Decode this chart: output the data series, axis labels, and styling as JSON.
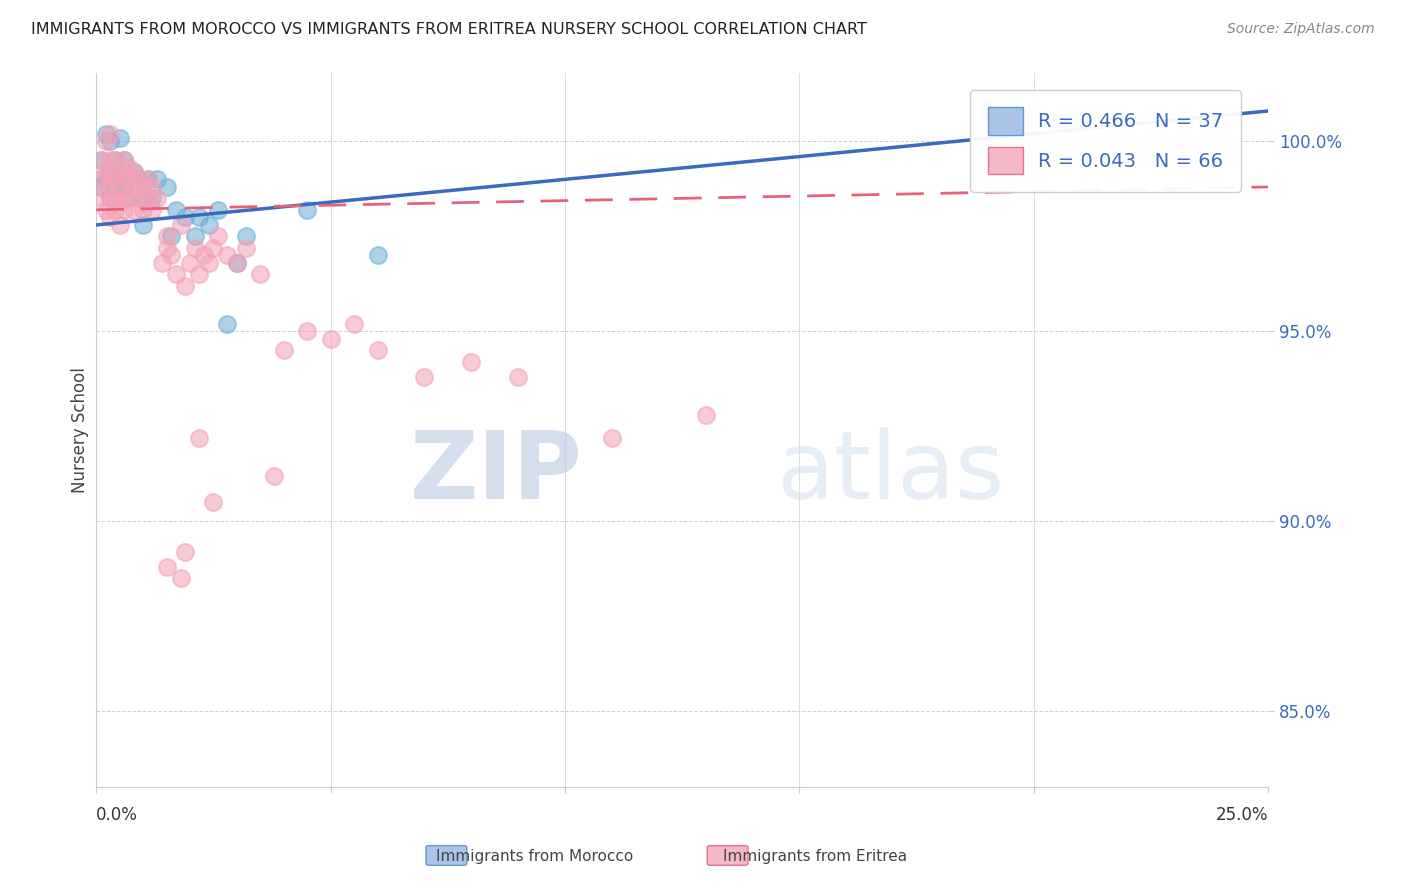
{
  "title": "IMMIGRANTS FROM MOROCCO VS IMMIGRANTS FROM ERITREA NURSERY SCHOOL CORRELATION CHART",
  "source": "Source: ZipAtlas.com",
  "ylabel": "Nursery School",
  "xmin": 0.0,
  "xmax": 0.25,
  "ymin": 83.0,
  "ymax": 101.8,
  "morocco_R": 0.466,
  "morocco_N": 37,
  "eritrea_R": 0.043,
  "eritrea_N": 66,
  "morocco_color": "#6baed6",
  "eritrea_color": "#f4a0b5",
  "morocco_label": "Immigrants from Morocco",
  "eritrea_label": "Immigrants from Eritrea",
  "watermark_zip": "ZIP",
  "watermark_atlas": "atlas",
  "background_color": "#ffffff",
  "grid_color": "#d0d0d0",
  "morocco_x": [
    0.001,
    0.001,
    0.002,
    0.002,
    0.003,
    0.003,
    0.003,
    0.004,
    0.004,
    0.005,
    0.005,
    0.006,
    0.006,
    0.007,
    0.007,
    0.008,
    0.009,
    0.01,
    0.01,
    0.011,
    0.012,
    0.013,
    0.015,
    0.016,
    0.017,
    0.019,
    0.021,
    0.022,
    0.024,
    0.026,
    0.028,
    0.03,
    0.032,
    0.045,
    0.06,
    0.19,
    0.205
  ],
  "morocco_y": [
    98.8,
    99.5,
    99.0,
    100.2,
    98.5,
    99.2,
    100.0,
    98.8,
    99.5,
    99.0,
    100.1,
    98.8,
    99.5,
    99.0,
    98.5,
    99.2,
    99.0,
    98.5,
    97.8,
    99.0,
    98.5,
    99.0,
    98.8,
    97.5,
    98.2,
    98.0,
    97.5,
    98.0,
    97.8,
    98.2,
    95.2,
    96.8,
    97.5,
    98.2,
    97.0,
    100.8,
    100.5
  ],
  "eritrea_x": [
    0.001,
    0.001,
    0.001,
    0.002,
    0.002,
    0.002,
    0.002,
    0.003,
    0.003,
    0.003,
    0.003,
    0.003,
    0.004,
    0.004,
    0.004,
    0.004,
    0.005,
    0.005,
    0.005,
    0.006,
    0.006,
    0.006,
    0.006,
    0.007,
    0.007,
    0.007,
    0.008,
    0.008,
    0.008,
    0.009,
    0.009,
    0.01,
    0.01,
    0.011,
    0.011,
    0.012,
    0.012,
    0.013,
    0.014,
    0.015,
    0.015,
    0.016,
    0.017,
    0.018,
    0.019,
    0.02,
    0.021,
    0.022,
    0.023,
    0.024,
    0.025,
    0.026,
    0.028,
    0.03,
    0.032,
    0.035,
    0.04,
    0.045,
    0.05,
    0.055,
    0.06,
    0.07,
    0.08,
    0.09,
    0.11,
    0.13
  ],
  "eritrea_y": [
    98.5,
    99.0,
    99.5,
    98.2,
    98.8,
    99.2,
    100.0,
    98.5,
    99.0,
    99.5,
    100.2,
    98.0,
    98.5,
    99.0,
    99.5,
    98.2,
    98.8,
    99.2,
    97.8,
    98.5,
    99.0,
    99.5,
    98.2,
    98.5,
    99.0,
    99.3,
    98.2,
    98.8,
    99.2,
    98.5,
    99.0,
    98.2,
    98.8,
    98.5,
    99.0,
    98.2,
    98.8,
    98.5,
    96.8,
    97.2,
    97.5,
    97.0,
    96.5,
    97.8,
    96.2,
    96.8,
    97.2,
    96.5,
    97.0,
    96.8,
    97.2,
    97.5,
    97.0,
    96.8,
    97.2,
    96.5,
    94.5,
    95.0,
    94.8,
    95.2,
    94.5,
    93.8,
    94.2,
    93.8,
    92.2,
    92.8
  ],
  "eritrea_outlier_x": [
    0.015,
    0.018,
    0.019,
    0.022,
    0.025,
    0.038
  ],
  "eritrea_outlier_y": [
    88.8,
    88.5,
    89.2,
    92.2,
    90.5,
    91.2
  ],
  "morocco_trendline_y0": 97.8,
  "morocco_trendline_y1": 100.8,
  "eritrea_trendline_y0": 98.2,
  "eritrea_trendline_y1": 98.8
}
